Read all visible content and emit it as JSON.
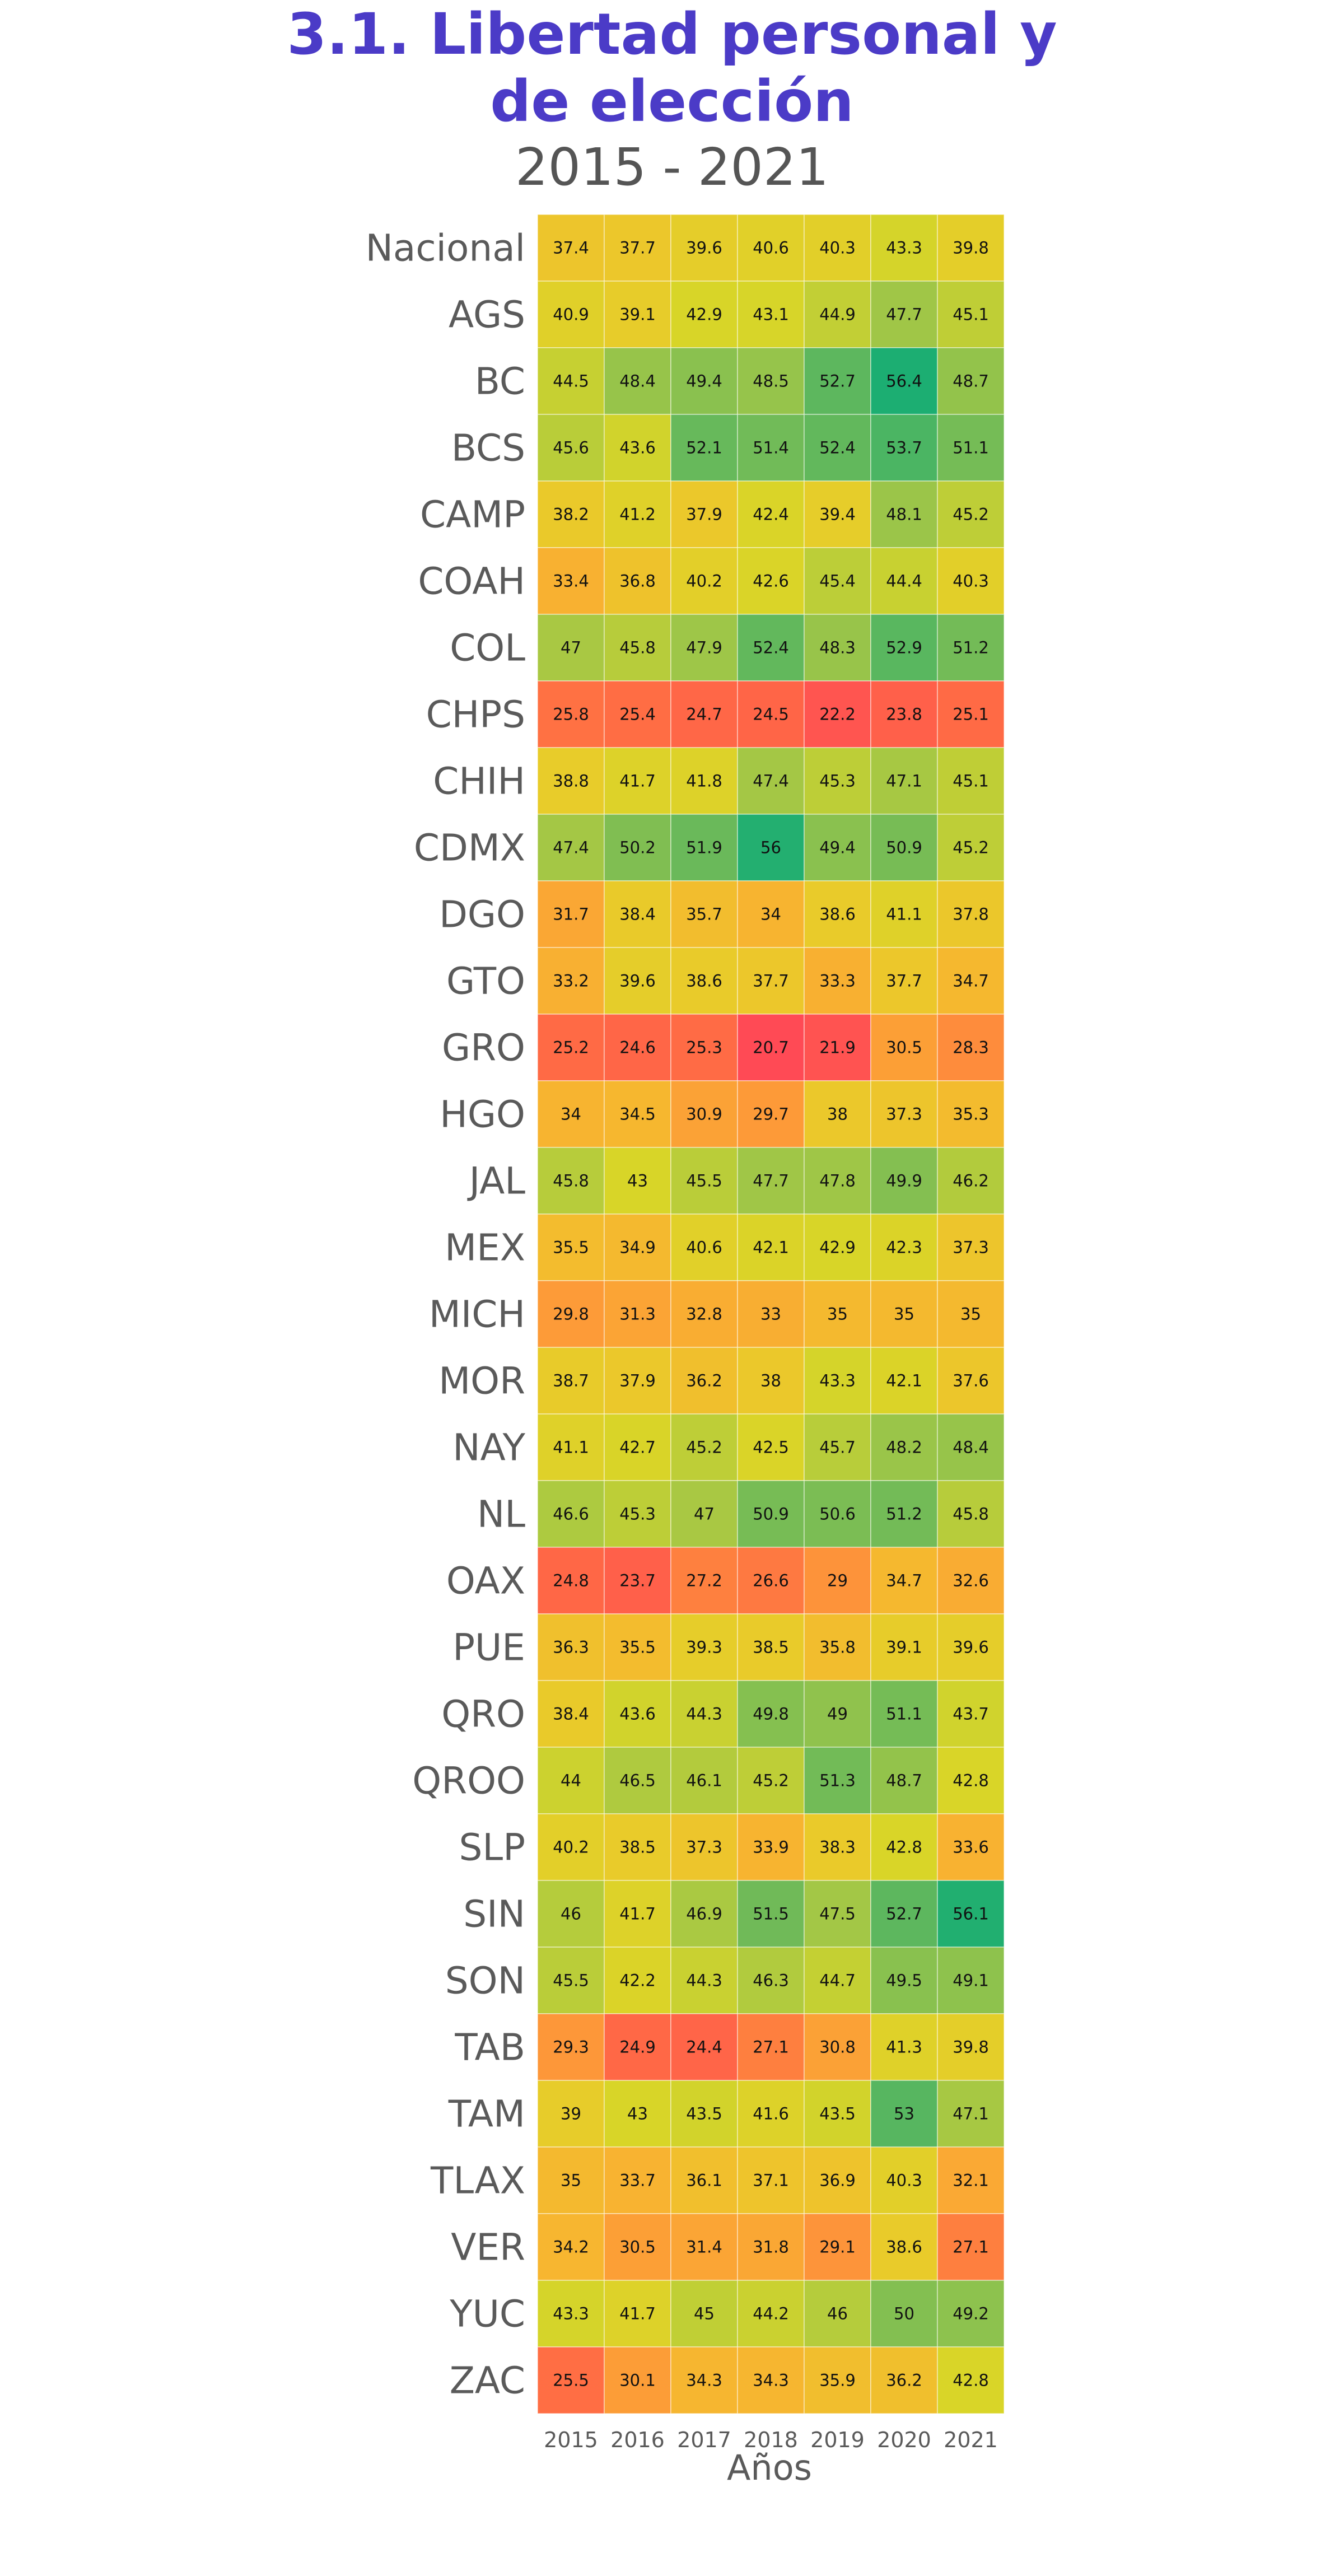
{
  "chart_data": {
    "type": "heatmap",
    "title": "3.1. Libertad personal y de elección",
    "title_lines": [
      "3.1. Libertad personal y",
      "de elección"
    ],
    "subtitle": "2015 - 2021",
    "xlabel": "Años",
    "ylabel": "",
    "x": [
      "2015",
      "2016",
      "2017",
      "2018",
      "2019",
      "2020",
      "2021"
    ],
    "y": [
      "Nacional",
      "AGS",
      "BC",
      "BCS",
      "CAMP",
      "COAH",
      "COL",
      "CHPS",
      "CHIH",
      "CDMX",
      "DGO",
      "GTO",
      "GRO",
      "HGO",
      "JAL",
      "MEX",
      "MICH",
      "MOR",
      "NAY",
      "NL",
      "OAX",
      "PUE",
      "QRO",
      "QROO",
      "SLP",
      "SIN",
      "SON",
      "TAB",
      "TAM",
      "TLAX",
      "VER",
      "YUC",
      "ZAC"
    ],
    "values": [
      [
        37.4,
        37.7,
        39.6,
        40.6,
        40.3,
        43.3,
        39.8
      ],
      [
        40.9,
        39.1,
        42.9,
        43.1,
        44.9,
        47.7,
        45.1
      ],
      [
        44.5,
        48.4,
        49.4,
        48.5,
        52.7,
        56.4,
        48.7
      ],
      [
        45.6,
        43.6,
        52.1,
        51.4,
        52.4,
        53.7,
        51.1
      ],
      [
        38.2,
        41.2,
        37.9,
        42.4,
        39.4,
        48.1,
        45.2
      ],
      [
        33.4,
        36.8,
        40.2,
        42.6,
        45.4,
        44.4,
        40.3
      ],
      [
        47,
        45.8,
        47.9,
        52.4,
        48.3,
        52.9,
        51.2
      ],
      [
        25.8,
        25.4,
        24.7,
        24.5,
        22.2,
        23.8,
        25.1
      ],
      [
        38.8,
        41.7,
        41.8,
        47.4,
        45.3,
        47.1,
        45.1
      ],
      [
        47.4,
        50.2,
        51.9,
        56,
        49.4,
        50.9,
        45.2
      ],
      [
        31.7,
        38.4,
        35.7,
        34,
        38.6,
        41.1,
        37.8
      ],
      [
        33.2,
        39.6,
        38.6,
        37.7,
        33.3,
        37.7,
        34.7
      ],
      [
        25.2,
        24.6,
        25.3,
        20.7,
        21.9,
        30.5,
        28.3
      ],
      [
        34,
        34.5,
        30.9,
        29.7,
        38,
        37.3,
        35.3
      ],
      [
        45.8,
        43,
        45.5,
        47.7,
        47.8,
        49.9,
        46.2
      ],
      [
        35.5,
        34.9,
        40.6,
        42.1,
        42.9,
        42.3,
        37.3
      ],
      [
        29.8,
        31.3,
        32.8,
        33,
        35,
        35,
        35
      ],
      [
        38.7,
        37.9,
        36.2,
        38,
        43.3,
        42.1,
        37.6
      ],
      [
        41.1,
        42.7,
        45.2,
        42.5,
        45.7,
        48.2,
        48.4
      ],
      [
        46.6,
        45.3,
        47,
        50.9,
        50.6,
        51.2,
        45.8
      ],
      [
        24.8,
        23.7,
        27.2,
        26.6,
        29,
        34.7,
        32.6
      ],
      [
        36.3,
        35.5,
        39.3,
        38.5,
        35.8,
        39.1,
        39.6
      ],
      [
        38.4,
        43.6,
        44.3,
        49.8,
        49,
        51.1,
        43.7
      ],
      [
        44,
        46.5,
        46.1,
        45.2,
        51.3,
        48.7,
        42.8
      ],
      [
        40.2,
        38.5,
        37.3,
        33.9,
        38.3,
        42.8,
        33.6
      ],
      [
        46,
        41.7,
        46.9,
        51.5,
        47.5,
        52.7,
        56.1
      ],
      [
        45.5,
        42.2,
        44.3,
        46.3,
        44.7,
        49.5,
        49.1
      ],
      [
        29.3,
        24.9,
        24.4,
        27.1,
        30.8,
        41.3,
        39.8
      ],
      [
        39,
        43,
        43.5,
        41.6,
        43.5,
        53,
        47.1
      ],
      [
        35,
        33.7,
        36.1,
        37.1,
        36.9,
        40.3,
        32.1
      ],
      [
        34.2,
        30.5,
        31.4,
        31.8,
        29.1,
        38.6,
        27.1
      ],
      [
        43.3,
        41.7,
        45,
        44.2,
        46,
        50,
        49.2
      ],
      [
        25.5,
        30.1,
        34.3,
        34.3,
        35.9,
        36.2,
        42.8
      ]
    ],
    "value_range": [
      20.7,
      56.4
    ],
    "color_scale": [
      "#ff4a55",
      "#ff6a45",
      "#fd9a38",
      "#f7b530",
      "#e9cb2a",
      "#d8d528",
      "#a3c746",
      "#6ab95a",
      "#1cae72"
    ],
    "grid": false,
    "legend": "none"
  }
}
